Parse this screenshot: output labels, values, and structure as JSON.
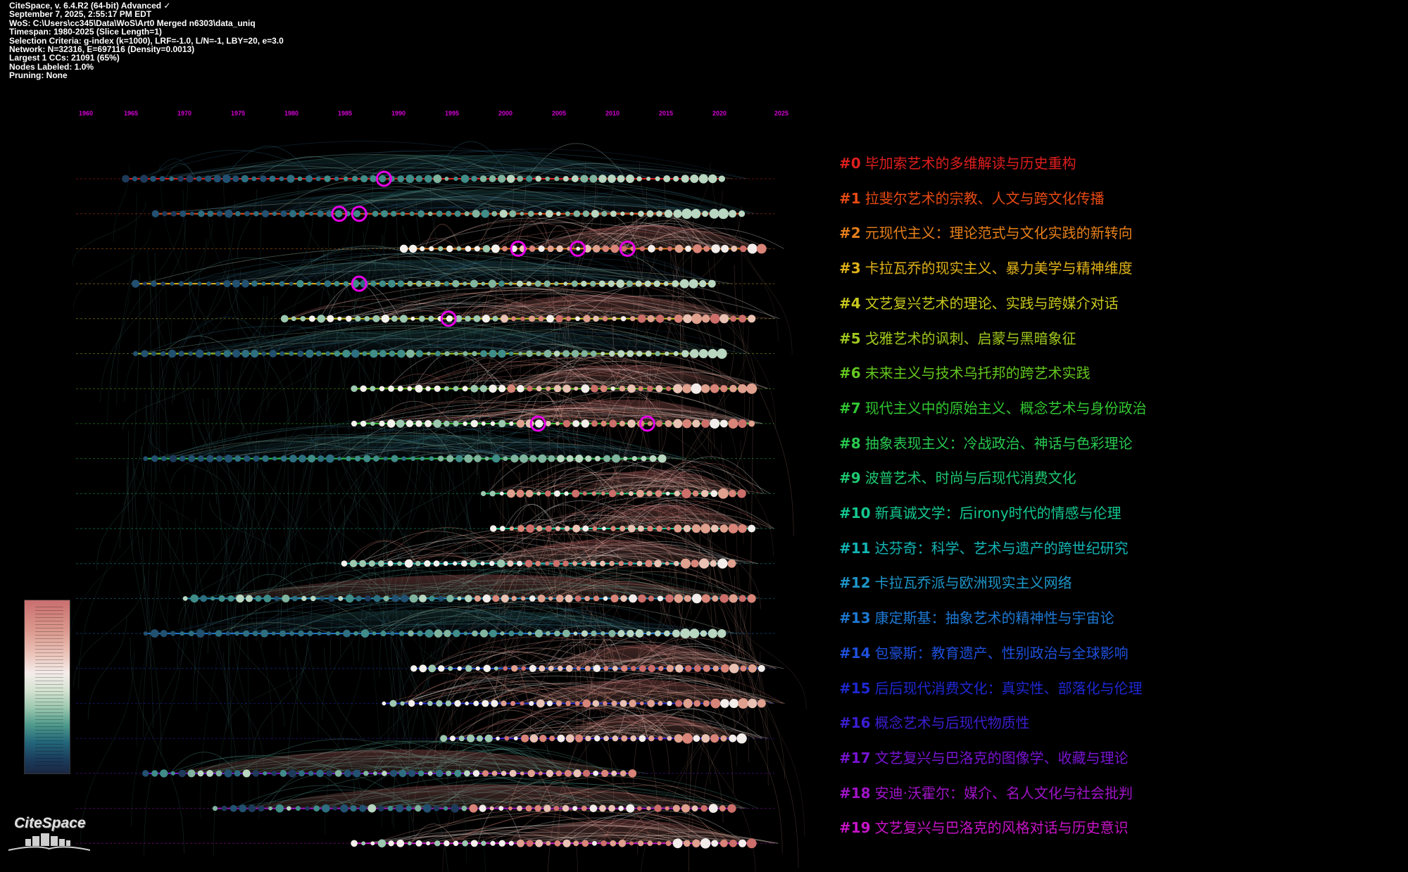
{
  "info_lines": [
    "CiteSpace, v. 6.4.R2 (64-bit) Advanced ✓",
    "September 7, 2025, 2:55:17 PM EDT",
    "WoS: C:\\Users\\cc345\\Data\\WoS\\Art0 Merged n6303\\data_uniq",
    "Timespan: 1980-2025 (Slice Length=1)",
    "Selection Criteria: g-index (k=1000), LRF=-1.0, L/N=-1, LBY=20, e=3.0",
    "Network: N=32316, E=697116 (Density=0.0013)",
    "Largest 1 CCs: 21091 (65%)",
    "Nodes Labeled: 1.0%",
    "Pruning: None"
  ],
  "timeline": {
    "year_labels": [
      "1960",
      "1965",
      "1970",
      "1975",
      "1980",
      "1985",
      "1990",
      "1995",
      "2000",
      "2005",
      "2010",
      "2015",
      "2020",
      "2025"
    ],
    "year_label_color": "#d400d4"
  },
  "clusters": [
    {
      "id": "#0",
      "label": "毕加索艺术的多维解读与历史重构",
      "color": "#e01e1e",
      "start": 1959,
      "end": 2019,
      "hue": "cool",
      "bursts": [
        1985
      ]
    },
    {
      "id": "#1",
      "label": "拉斐尔艺术的宗教、人文与跨文化传播",
      "color": "#e84a14",
      "start": 1962,
      "end": 2021,
      "hue": "cool",
      "bursts": [
        1980.5,
        1982.5
      ]
    },
    {
      "id": "#2",
      "label": "元现代主义：理论范式与文化实践的新转向",
      "color": "#e8801a",
      "start": 1987,
      "end": 2023,
      "hue": "warm",
      "bursts": [
        1998.5,
        2004.5,
        2009.5
      ]
    },
    {
      "id": "#3",
      "label": "卡拉瓦乔的现实主义、暴力美学与精神维度",
      "color": "#e0b21a",
      "start": 1960,
      "end": 2018,
      "hue": "cool",
      "bursts": [
        1982.5
      ]
    },
    {
      "id": "#4",
      "label": "文艺复兴艺术的理论、实践与跨媒介对话",
      "color": "#c8c81e",
      "start": 1975,
      "end": 2022,
      "hue": "warm",
      "bursts": [
        1991.5
      ]
    },
    {
      "id": "#5",
      "label": "戈雅艺术的讽刺、启蒙与黑暗象征",
      "color": "#a0c81e",
      "start": 1960,
      "end": 2019,
      "hue": "cool",
      "bursts": []
    },
    {
      "id": "#6",
      "label": "未来主义与技术乌托邦的跨艺术实践",
      "color": "#64c81e",
      "start": 1982,
      "end": 2022,
      "hue": "warm",
      "bursts": []
    },
    {
      "id": "#7",
      "label": "现代主义中的原始主义、概念艺术与身份政治",
      "color": "#32c832",
      "start": 1982,
      "end": 2022,
      "hue": "warm",
      "bursts": [
        2000.5,
        2011.5
      ]
    },
    {
      "id": "#8",
      "label": "抽象表现主义：冷战政治、神话与色彩理论",
      "color": "#28c850",
      "start": 1961,
      "end": 2013,
      "hue": "cool",
      "bursts": []
    },
    {
      "id": "#9",
      "label": "波普艺术、时尚与后现代消费文化",
      "color": "#1ec870",
      "start": 1995,
      "end": 2021,
      "hue": "warm",
      "bursts": []
    },
    {
      "id": "#10",
      "label": "新真诚文学：后irony时代的情感与伦理",
      "color": "#14c890",
      "start": 1996,
      "end": 2022,
      "hue": "warm",
      "bursts": []
    },
    {
      "id": "#11",
      "label": "达芬奇：科学、艺术与遗产的跨世纪研究",
      "color": "#14b4b4",
      "start": 1981,
      "end": 2020,
      "hue": "warm",
      "bursts": []
    },
    {
      "id": "#12",
      "label": "卡拉瓦乔派与欧洲现实主义网络",
      "color": "#1e96c8",
      "start": 1965,
      "end": 2022,
      "hue": "mixed",
      "bursts": []
    },
    {
      "id": "#13",
      "label": "康定斯基：抽象艺术的精神性与宇宙论",
      "color": "#1e78d2",
      "start": 1961,
      "end": 2019,
      "hue": "cool",
      "bursts": []
    },
    {
      "id": "#14",
      "label": "包豪斯：教育遗产、性别政治与全球影响",
      "color": "#1e50dc",
      "start": 1988,
      "end": 2023,
      "hue": "warm",
      "bursts": []
    },
    {
      "id": "#15",
      "label": "后后现代消费文化：真实性、部落化与伦理",
      "color": "#1e28d2",
      "start": 1985,
      "end": 2023,
      "hue": "warm",
      "bursts": []
    },
    {
      "id": "#16",
      "label": "概念艺术与后现代物质性",
      "color": "#3c1ed2",
      "start": 1991,
      "end": 2021,
      "hue": "warm",
      "bursts": []
    },
    {
      "id": "#17",
      "label": "文艺复兴与巴洛克的图像学、收藏与理论",
      "color": "#7814d2",
      "start": 1961,
      "end": 2010,
      "hue": "mixed",
      "bursts": []
    },
    {
      "id": "#18",
      "label": "安迪·沃霍尔：媒介、名人文化与社会批判",
      "color": "#a014c8",
      "start": 1968,
      "end": 2020,
      "hue": "mixed",
      "bursts": []
    },
    {
      "id": "#19",
      "label": "文艺复兴与巴洛克的风格对话与历史意识",
      "color": "#c814c8",
      "start": 1982,
      "end": 2022,
      "hue": "warm",
      "bursts": []
    }
  ],
  "logo": {
    "text": "CiteSpace"
  }
}
